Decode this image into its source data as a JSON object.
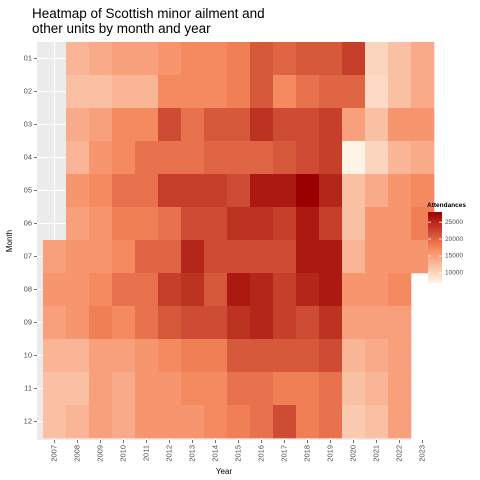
{
  "chart_data": {
    "type": "heatmap",
    "title_lines": [
      "Heatmap of Scottish minor ailment and",
      "other units by month and year"
    ],
    "xlabel": "Year",
    "ylabel": "Month",
    "x_categories": [
      "2007",
      "2008",
      "2009",
      "2010",
      "2011",
      "2012",
      "2013",
      "2014",
      "2015",
      "2016",
      "2017",
      "2018",
      "2019",
      "2020",
      "2021",
      "2022",
      "2023"
    ],
    "y_categories": [
      "01",
      "02",
      "03",
      "04",
      "05",
      "06",
      "07",
      "08",
      "09",
      "10",
      "11",
      "12"
    ],
    "values": [
      [
        null,
        13000,
        14000,
        15000,
        15000,
        16000,
        17000,
        17000,
        18000,
        21000,
        20000,
        21000,
        21000,
        23000,
        10000,
        12000,
        14000
      ],
      [
        null,
        12000,
        12000,
        13000,
        13000,
        17000,
        17000,
        17000,
        18000,
        21000,
        17000,
        19000,
        20000,
        20000,
        9500,
        12000,
        14000
      ],
      [
        null,
        14000,
        15000,
        17000,
        17000,
        22000,
        19000,
        21000,
        21000,
        24000,
        22000,
        22000,
        23000,
        15000,
        12000,
        16000,
        16000
      ],
      [
        null,
        13000,
        16000,
        17000,
        19000,
        19000,
        19000,
        20000,
        20000,
        20000,
        21000,
        22000,
        23000,
        7000,
        10000,
        13000,
        14000
      ],
      [
        null,
        16000,
        17000,
        19000,
        19000,
        23000,
        23000,
        23000,
        22000,
        26000,
        26000,
        28000,
        25000,
        12000,
        14000,
        16000,
        17000
      ],
      [
        null,
        15000,
        16000,
        18000,
        18000,
        19000,
        22000,
        22000,
        24000,
        24000,
        23000,
        26000,
        23000,
        12000,
        16000,
        16000,
        18000
      ],
      [
        15000,
        16000,
        16000,
        17000,
        20000,
        20000,
        25000,
        22000,
        22000,
        22000,
        22000,
        26000,
        26000,
        13000,
        16000,
        16000,
        16000
      ],
      [
        16000,
        16000,
        17000,
        19000,
        19000,
        23000,
        24000,
        21000,
        26000,
        25000,
        23000,
        25000,
        26000,
        16000,
        16000,
        17000,
        null
      ],
      [
        15000,
        16000,
        18000,
        17000,
        19000,
        21000,
        22000,
        22000,
        24000,
        25000,
        23000,
        22000,
        24000,
        15000,
        15000,
        15000,
        null
      ],
      [
        13000,
        13000,
        15000,
        15000,
        16000,
        17000,
        18000,
        18000,
        21000,
        21000,
        21000,
        21000,
        22000,
        13000,
        14000,
        15000,
        null
      ],
      [
        12000,
        12000,
        15000,
        14000,
        16000,
        16000,
        17000,
        17000,
        19000,
        19000,
        18000,
        18000,
        19000,
        12000,
        13000,
        15000,
        null
      ],
      [
        12000,
        13000,
        15000,
        14000,
        16000,
        16000,
        16000,
        17000,
        18000,
        19000,
        22000,
        18000,
        19000,
        11000,
        12000,
        15000,
        null
      ]
    ],
    "legend": {
      "title": "Attendances",
      "ticks": [
        25000,
        20000,
        15000,
        10000
      ],
      "min": 7000,
      "max": 28000,
      "low_color": "#fff5e6",
      "mid_color": "#f5855a",
      "high_color": "#9b0000",
      "position": "right"
    },
    "panel_background": "#ebebeb",
    "grid": true
  }
}
